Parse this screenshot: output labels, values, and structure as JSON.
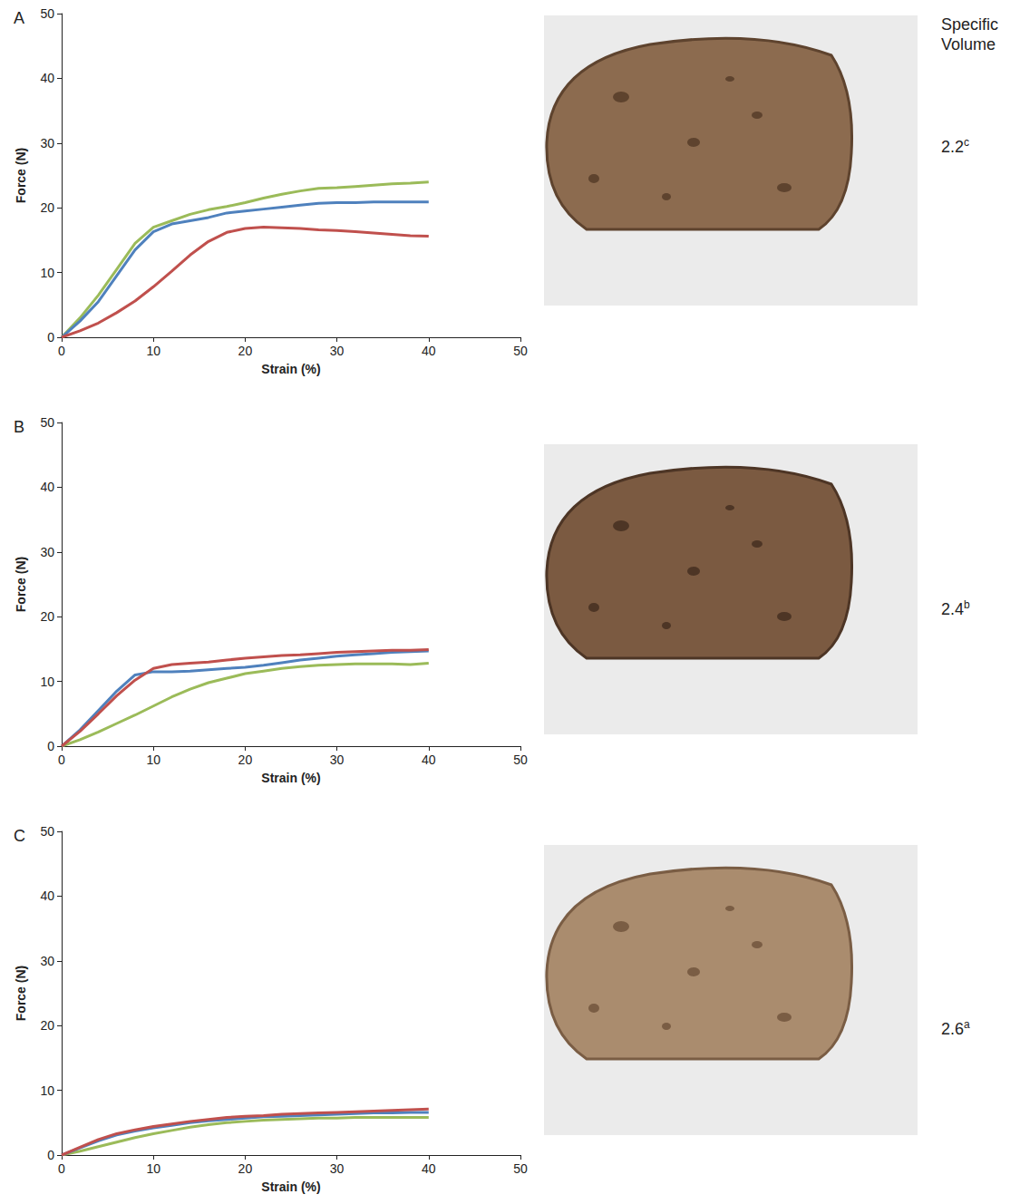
{
  "side_heading": "Specific Volume",
  "chart_data": [
    {
      "type": "line",
      "title": "A",
      "x_label": "Strain (%)",
      "y_label": "Force (N)",
      "xlim": [
        0,
        50
      ],
      "xticks": [
        0,
        10,
        20,
        30,
        40,
        50
      ],
      "ylim": [
        0,
        50
      ],
      "yticks": [
        0,
        10,
        20,
        30,
        40,
        50
      ],
      "grid": false,
      "specific_volume": 2.2,
      "specific_volume_group": "c",
      "x": [
        0,
        2,
        4,
        6,
        8,
        10,
        12,
        14,
        16,
        18,
        20,
        22,
        24,
        26,
        28,
        30,
        32,
        34,
        36,
        38,
        40
      ],
      "series": [
        {
          "color": "#9bbb59",
          "values": [
            0,
            3,
            6.5,
            10.5,
            14.5,
            17,
            18,
            19,
            19.7,
            20.2,
            20.8,
            21.5,
            22.1,
            22.6,
            23,
            23.1,
            23.3,
            23.5,
            23.7,
            23.8,
            24
          ]
        },
        {
          "color": "#4f81bd",
          "values": [
            0,
            2.5,
            5.5,
            9.5,
            13.5,
            16.3,
            17.5,
            18,
            18.5,
            19.2,
            19.5,
            19.8,
            20.1,
            20.4,
            20.7,
            20.8,
            20.8,
            20.9,
            20.9,
            20.9,
            20.9
          ]
        },
        {
          "color": "#c0504d",
          "values": [
            0,
            1,
            2.2,
            3.8,
            5.6,
            7.8,
            10.2,
            12.7,
            14.8,
            16.2,
            16.8,
            17,
            16.9,
            16.8,
            16.6,
            16.5,
            16.3,
            16.1,
            15.9,
            15.7,
            15.6
          ]
        }
      ]
    },
    {
      "type": "line",
      "title": "B",
      "x_label": "Strain (%)",
      "y_label": "Force (N)",
      "xlim": [
        0,
        50
      ],
      "xticks": [
        0,
        10,
        20,
        30,
        40,
        50
      ],
      "ylim": [
        0,
        50
      ],
      "yticks": [
        0,
        10,
        20,
        30,
        40,
        50
      ],
      "grid": false,
      "specific_volume": 2.4,
      "specific_volume_group": "b",
      "x": [
        0,
        2,
        4,
        6,
        8,
        10,
        12,
        14,
        16,
        18,
        20,
        22,
        24,
        26,
        28,
        30,
        32,
        34,
        36,
        38,
        40
      ],
      "series": [
        {
          "color": "#9bbb59",
          "values": [
            0,
            1,
            2.2,
            3.5,
            4.8,
            6.2,
            7.6,
            8.8,
            9.8,
            10.5,
            11.2,
            11.6,
            12,
            12.3,
            12.5,
            12.6,
            12.7,
            12.7,
            12.7,
            12.6,
            12.8
          ]
        },
        {
          "color": "#4f81bd",
          "values": [
            0,
            2.5,
            5.5,
            8.5,
            11,
            11.5,
            11.5,
            11.6,
            11.8,
            12,
            12.2,
            12.5,
            12.9,
            13.3,
            13.6,
            13.9,
            14.1,
            14.3,
            14.5,
            14.6,
            14.7
          ]
        },
        {
          "color": "#c0504d",
          "values": [
            0,
            2.3,
            5,
            7.8,
            10.2,
            12,
            12.6,
            12.8,
            13,
            13.3,
            13.6,
            13.8,
            14,
            14.1,
            14.3,
            14.5,
            14.6,
            14.7,
            14.8,
            14.8,
            14.9
          ]
        }
      ]
    },
    {
      "type": "line",
      "title": "C",
      "x_label": "Strain (%)",
      "y_label": "Force (N)",
      "xlim": [
        0,
        50
      ],
      "xticks": [
        0,
        10,
        20,
        30,
        40,
        50
      ],
      "ylim": [
        0,
        50
      ],
      "yticks": [
        0,
        10,
        20,
        30,
        40,
        50
      ],
      "grid": false,
      "specific_volume": 2.6,
      "specific_volume_group": "a",
      "x": [
        0,
        2,
        4,
        6,
        8,
        10,
        12,
        14,
        16,
        18,
        20,
        22,
        24,
        26,
        28,
        30,
        32,
        34,
        36,
        38,
        40
      ],
      "series": [
        {
          "color": "#9bbb59",
          "values": [
            0,
            0.6,
            1.3,
            2,
            2.7,
            3.3,
            3.8,
            4.3,
            4.7,
            5,
            5.2,
            5.4,
            5.5,
            5.6,
            5.7,
            5.7,
            5.8,
            5.8,
            5.8,
            5.8,
            5.8
          ]
        },
        {
          "color": "#4f81bd",
          "values": [
            0,
            1.1,
            2.2,
            3.1,
            3.7,
            4.2,
            4.6,
            5,
            5.3,
            5.5,
            5.7,
            5.9,
            6,
            6.1,
            6.2,
            6.3,
            6.4,
            6.5,
            6.5,
            6.6,
            6.6
          ]
        },
        {
          "color": "#c0504d",
          "values": [
            0,
            1.2,
            2.4,
            3.3,
            3.9,
            4.4,
            4.8,
            5.2,
            5.5,
            5.8,
            6,
            6.1,
            6.3,
            6.4,
            6.5,
            6.6,
            6.7,
            6.8,
            6.9,
            7,
            7.1
          ]
        }
      ]
    }
  ]
}
